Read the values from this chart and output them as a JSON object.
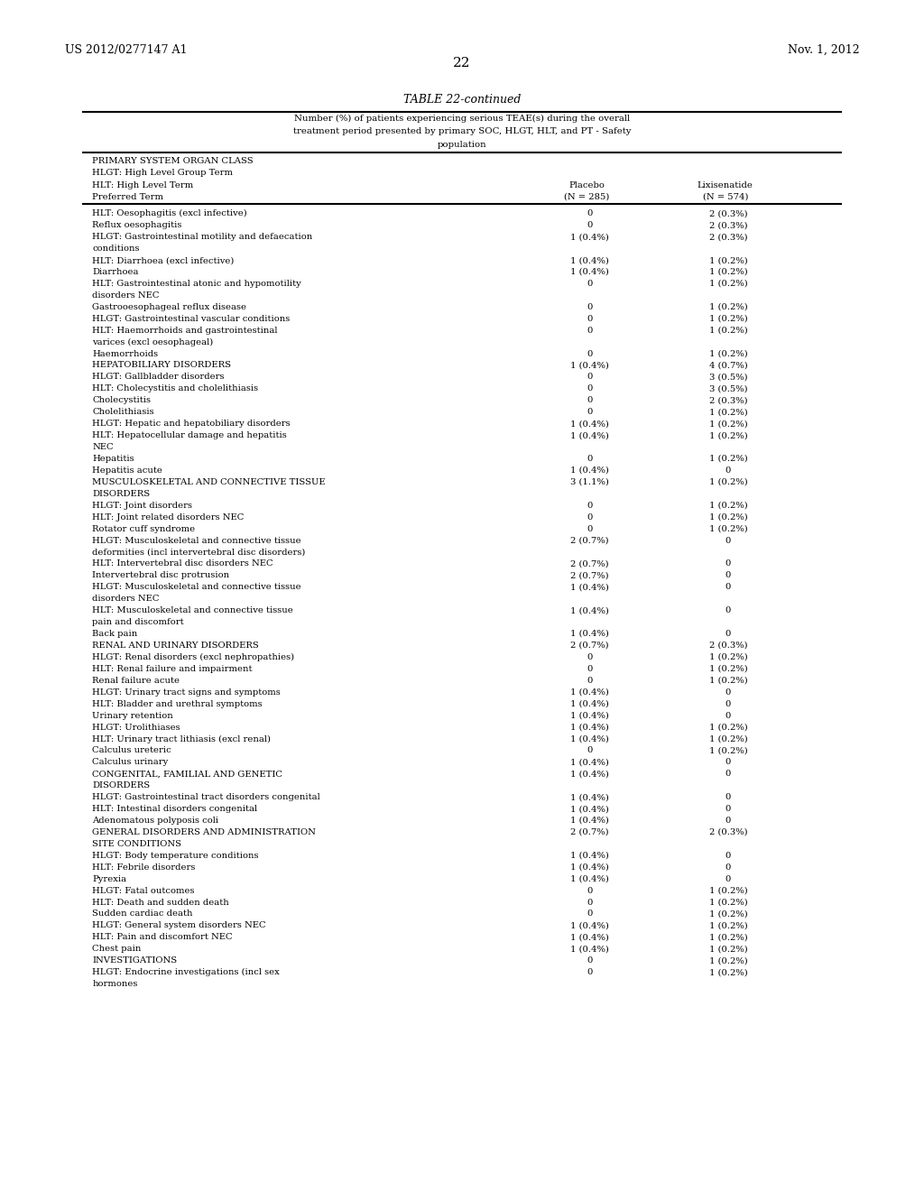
{
  "header_left": "US 2012/0277147 A1",
  "header_right": "Nov. 1, 2012",
  "page_number": "22",
  "table_title": "TABLE 22-continued",
  "table_subtitle_line1": "Number (%) of patients experiencing serious TEAE(s) during the overall",
  "table_subtitle_line2": "treatment period presented by primary SOC, HLGT, HLT, and PT - Safety",
  "table_subtitle_line3": "population",
  "col1_header1": "PRIMARY SYSTEM ORGAN CLASS",
  "col1_header2": "HLGT: High Level Group Term",
  "col1_header3": "HLT: High Level Term",
  "col1_header4": "Preferred Term",
  "col2_header1": "Placebo",
  "col2_header2": "(N = 285)",
  "col3_header1": "Lixisenatide",
  "col3_header2": "(N = 574)",
  "rows": [
    [
      "HLT: Oesophagitis (excl infective)",
      "0",
      "2 (0.3%)"
    ],
    [
      "Reflux oesophagitis",
      "0",
      "2 (0.3%)"
    ],
    [
      "HLGT: Gastrointestinal motility and defaecation",
      "1 (0.4%)",
      "2 (0.3%)"
    ],
    [
      "conditions",
      "",
      ""
    ],
    [
      "HLT: Diarrhoea (excl infective)",
      "1 (0.4%)",
      "1 (0.2%)"
    ],
    [
      "Diarrhoea",
      "1 (0.4%)",
      "1 (0.2%)"
    ],
    [
      "HLT: Gastrointestinal atonic and hypomotility",
      "0",
      "1 (0.2%)"
    ],
    [
      "disorders NEC",
      "",
      ""
    ],
    [
      "Gastrooesophageal reflux disease",
      "0",
      "1 (0.2%)"
    ],
    [
      "HLGT: Gastrointestinal vascular conditions",
      "0",
      "1 (0.2%)"
    ],
    [
      "HLT: Haemorrhoids and gastrointestinal",
      "0",
      "1 (0.2%)"
    ],
    [
      "varices (excl oesophageal)",
      "",
      ""
    ],
    [
      "Haemorrhoids",
      "0",
      "1 (0.2%)"
    ],
    [
      "HEPATOBILIARY DISORDERS",
      "1 (0.4%)",
      "4 (0.7%)"
    ],
    [
      "HLGT: Gallbladder disorders",
      "0",
      "3 (0.5%)"
    ],
    [
      "HLT: Cholecystitis and cholelithiasis",
      "0",
      "3 (0.5%)"
    ],
    [
      "Cholecystitis",
      "0",
      "2 (0.3%)"
    ],
    [
      "Cholelithiasis",
      "0",
      "1 (0.2%)"
    ],
    [
      "HLGT: Hepatic and hepatobiliary disorders",
      "1 (0.4%)",
      "1 (0.2%)"
    ],
    [
      "HLT: Hepatocellular damage and hepatitis",
      "1 (0.4%)",
      "1 (0.2%)"
    ],
    [
      "NEC",
      "",
      ""
    ],
    [
      "Hepatitis",
      "0",
      "1 (0.2%)"
    ],
    [
      "Hepatitis acute",
      "1 (0.4%)",
      "0"
    ],
    [
      "MUSCULOSKELETAL AND CONNECTIVE TISSUE",
      "3 (1.1%)",
      "1 (0.2%)"
    ],
    [
      "DISORDERS",
      "",
      ""
    ],
    [
      "HLGT: Joint disorders",
      "0",
      "1 (0.2%)"
    ],
    [
      "HLT: Joint related disorders NEC",
      "0",
      "1 (0.2%)"
    ],
    [
      "Rotator cuff syndrome",
      "0",
      "1 (0.2%)"
    ],
    [
      "HLGT: Musculoskeletal and connective tissue",
      "2 (0.7%)",
      "0"
    ],
    [
      "deformities (incl intervertebral disc disorders)",
      "",
      ""
    ],
    [
      "HLT: Intervertebral disc disorders NEC",
      "2 (0.7%)",
      "0"
    ],
    [
      "Intervertebral disc protrusion",
      "2 (0.7%)",
      "0"
    ],
    [
      "HLGT: Musculoskeletal and connective tissue",
      "1 (0.4%)",
      "0"
    ],
    [
      "disorders NEC",
      "",
      ""
    ],
    [
      "HLT: Musculoskeletal and connective tissue",
      "1 (0.4%)",
      "0"
    ],
    [
      "pain and discomfort",
      "",
      ""
    ],
    [
      "Back pain",
      "1 (0.4%)",
      "0"
    ],
    [
      "RENAL AND URINARY DISORDERS",
      "2 (0.7%)",
      "2 (0.3%)"
    ],
    [
      "HLGT: Renal disorders (excl nephropathies)",
      "0",
      "1 (0.2%)"
    ],
    [
      "HLT: Renal failure and impairment",
      "0",
      "1 (0.2%)"
    ],
    [
      "Renal failure acute",
      "0",
      "1 (0.2%)"
    ],
    [
      "HLGT: Urinary tract signs and symptoms",
      "1 (0.4%)",
      "0"
    ],
    [
      "HLT: Bladder and urethral symptoms",
      "1 (0.4%)",
      "0"
    ],
    [
      "Urinary retention",
      "1 (0.4%)",
      "0"
    ],
    [
      "HLGT: Urolithiases",
      "1 (0.4%)",
      "1 (0.2%)"
    ],
    [
      "HLT: Urinary tract lithiasis (excl renal)",
      "1 (0.4%)",
      "1 (0.2%)"
    ],
    [
      "Calculus ureteric",
      "0",
      "1 (0.2%)"
    ],
    [
      "Calculus urinary",
      "1 (0.4%)",
      "0"
    ],
    [
      "CONGENITAL, FAMILIAL AND GENETIC",
      "1 (0.4%)",
      "0"
    ],
    [
      "DISORDERS",
      "",
      ""
    ],
    [
      "HLGT: Gastrointestinal tract disorders congenital",
      "1 (0.4%)",
      "0"
    ],
    [
      "HLT: Intestinal disorders congenital",
      "1 (0.4%)",
      "0"
    ],
    [
      "Adenomatous polyposis coli",
      "1 (0.4%)",
      "0"
    ],
    [
      "GENERAL DISORDERS AND ADMINISTRATION",
      "2 (0.7%)",
      "2 (0.3%)"
    ],
    [
      "SITE CONDITIONS",
      "",
      ""
    ],
    [
      "HLGT: Body temperature conditions",
      "1 (0.4%)",
      "0"
    ],
    [
      "HLT: Febrile disorders",
      "1 (0.4%)",
      "0"
    ],
    [
      "Pyrexia",
      "1 (0.4%)",
      "0"
    ],
    [
      "HLGT: Fatal outcomes",
      "0",
      "1 (0.2%)"
    ],
    [
      "HLT: Death and sudden death",
      "0",
      "1 (0.2%)"
    ],
    [
      "Sudden cardiac death",
      "0",
      "1 (0.2%)"
    ],
    [
      "HLGT: General system disorders NEC",
      "1 (0.4%)",
      "1 (0.2%)"
    ],
    [
      "HLT: Pain and discomfort NEC",
      "1 (0.4%)",
      "1 (0.2%)"
    ],
    [
      "Chest pain",
      "1 (0.4%)",
      "1 (0.2%)"
    ],
    [
      "INVESTIGATIONS",
      "0",
      "1 (0.2%)"
    ],
    [
      "HLGT: Endocrine investigations (incl sex",
      "0",
      "1 (0.2%)"
    ],
    [
      "hormones",
      "",
      ""
    ]
  ],
  "background_color": "#ffffff",
  "text_color": "#000000",
  "font_size": 7.2,
  "header_font_size": 9.0,
  "title_font_size": 9.0
}
